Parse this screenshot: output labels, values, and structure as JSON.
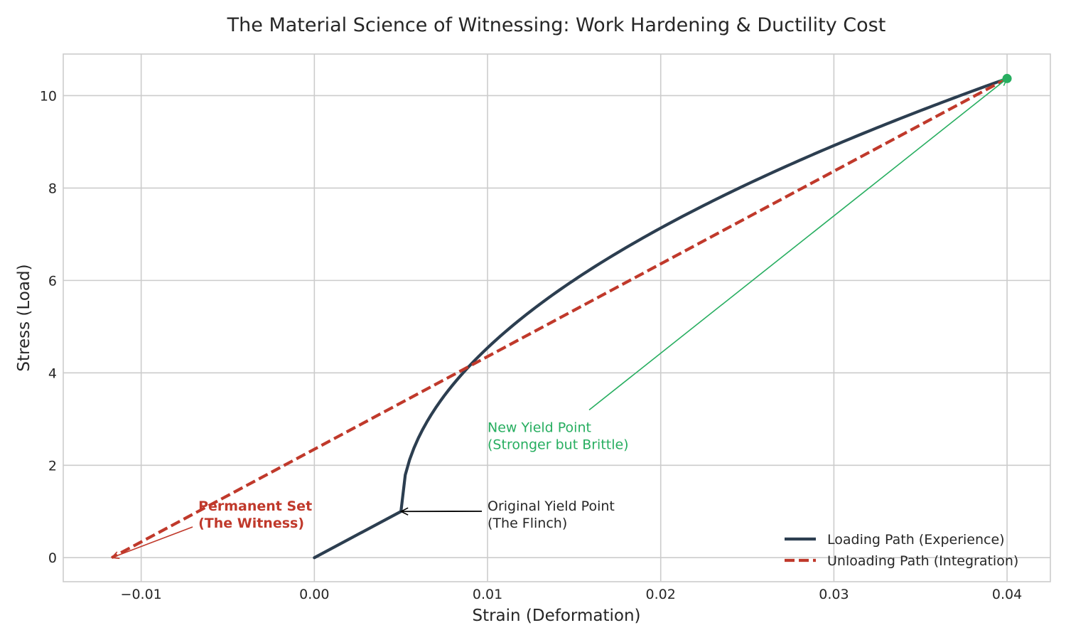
{
  "chart_data": {
    "type": "line",
    "title": "The Material Science of Witnessing: Work Hardening & Ductility Cost",
    "xlabel": "Strain (Deformation)",
    "ylabel": "Stress (Load)",
    "xlim": [
      -0.0145,
      0.0425
    ],
    "ylim": [
      -0.52,
      10.9
    ],
    "grid": true,
    "x_ticks": [
      -0.01,
      0.0,
      0.01,
      0.02,
      0.03,
      0.04
    ],
    "x_tick_labels": [
      "−0.01",
      "0.00",
      "0.01",
      "0.02",
      "0.03",
      "0.04"
    ],
    "y_ticks": [
      0,
      2,
      4,
      6,
      8,
      10
    ],
    "y_tick_labels": [
      "0",
      "2",
      "4",
      "6",
      "8",
      "10"
    ],
    "legend_position": "lower-right",
    "series": [
      {
        "name": "Loading Path (Experience)",
        "color": "#2c3e50",
        "style": "solid",
        "elastic_points": [
          [
            0.0,
            0.0
          ],
          [
            0.005,
            1.0
          ]
        ],
        "plastic_curve": {
          "x_start": 0.005,
          "x_end": 0.04,
          "y_start": 1.0,
          "y_end": 10.37,
          "exponent": 0.5
        }
      },
      {
        "name": "Unloading Path (Integration)",
        "color": "#c0392b",
        "style": "dashed",
        "points": [
          [
            0.04,
            10.37
          ],
          [
            -0.0117,
            0.0
          ]
        ]
      }
    ],
    "markers": [
      {
        "name": "new-yield-point-marker",
        "x": 0.04,
        "y": 10.37,
        "color": "#27ae60"
      }
    ],
    "annotations": [
      {
        "name": "permanent-set",
        "lines": [
          "Permanent Set",
          "(The Witness)"
        ],
        "color": "#c0392b",
        "bold": true,
        "text_x": -0.0067,
        "text_y": 0.85,
        "arrow_to": [
          -0.0117,
          0.0
        ]
      },
      {
        "name": "original-yield",
        "lines": [
          "Original Yield Point",
          "(The Flinch)"
        ],
        "color": "#262626",
        "bold": false,
        "text_x": 0.01,
        "text_y": 0.85,
        "arrow_to": [
          0.005,
          1.0
        ]
      },
      {
        "name": "new-yield",
        "lines": [
          "New Yield Point",
          "(Stronger but Brittle)"
        ],
        "color": "#27ae60",
        "bold": false,
        "text_x": 0.01,
        "text_y": 2.55,
        "arrow_to": [
          0.04,
          10.37
        ]
      }
    ]
  }
}
